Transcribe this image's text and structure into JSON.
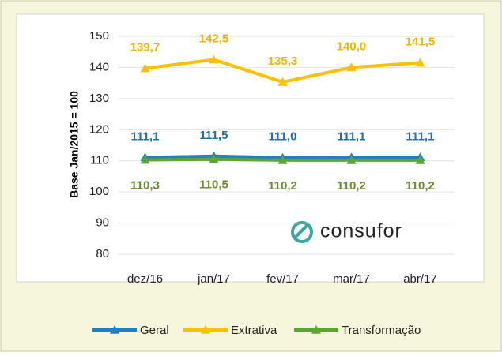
{
  "chart_data": {
    "type": "line",
    "y_label": "Base Jan/2015 = 100",
    "watermark": "consufor",
    "categories": [
      "dez/16",
      "jan/17",
      "fev/17",
      "mar/17",
      "abr/17"
    ],
    "series": [
      {
        "name": "Geral",
        "color": "#1f7fc8",
        "label_color": "#1d6eae",
        "label_position": "above",
        "values": [
          111.1,
          111.5,
          111.0,
          111.1,
          111.1
        ],
        "value_labels": [
          "111,1",
          "111,5",
          "111,0",
          "111,1",
          "111,1"
        ]
      },
      {
        "name": "Extrativa",
        "color": "#ffc000",
        "label_color": "#f2b600",
        "label_position": "above",
        "values": [
          139.7,
          142.5,
          135.3,
          140.0,
          141.5
        ],
        "value_labels": [
          "139,7",
          "142,5",
          "135,3",
          "140,0",
          "141,5"
        ]
      },
      {
        "name": "Transformação",
        "color": "#5aa832",
        "label_color": "#6b8e2a",
        "label_position": "below",
        "values": [
          110.3,
          110.5,
          110.2,
          110.2,
          110.2
        ],
        "value_labels": [
          "110,3",
          "110,5",
          "110,2",
          "110,2",
          "110,2"
        ]
      }
    ],
    "ylim": [
      80,
      150
    ],
    "yticks": [
      80,
      90,
      100,
      110,
      120,
      130,
      140,
      150
    ],
    "grid": true
  }
}
